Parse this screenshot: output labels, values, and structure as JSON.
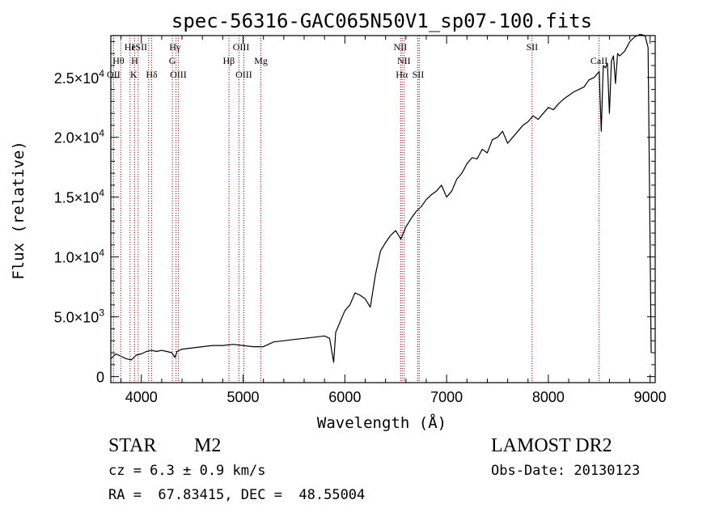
{
  "chart_data": {
    "type": "line",
    "title": "spec-56316-GAC065N50V1_sp07-100.fits",
    "xlabel": "Wavelength (Å)",
    "ylabel": "Flux (relative)",
    "xlim": [
      3700,
      9050
    ],
    "ylim": [
      -500,
      28500
    ],
    "x_ticks": [
      4000,
      5000,
      6000,
      7000,
      8000,
      9000
    ],
    "x_tick_labels": [
      "4000",
      "5000",
      "6000",
      "7000",
      "8000",
      "9000"
    ],
    "y_ticks": [
      0,
      5000,
      10000,
      15000,
      20000,
      25000
    ],
    "y_tick_labels": [
      {
        "mant": "0",
        "exp": ""
      },
      {
        "mant": "5.0×10",
        "exp": "3"
      },
      {
        "mant": "1.0×10",
        "exp": "4"
      },
      {
        "mant": "1.5×10",
        "exp": "4"
      },
      {
        "mant": "2.0×10",
        "exp": "4"
      },
      {
        "mant": "2.5×10",
        "exp": "4"
      }
    ],
    "grid": false,
    "series": [
      {
        "color": "#000000",
        "x": [
          3700,
          3750,
          3800,
          3850,
          3900,
          3950,
          4000,
          4050,
          4100,
          4150,
          4200,
          4250,
          4300,
          4330,
          4350,
          4400,
          4500,
          4600,
          4700,
          4800,
          4900,
          5000,
          5100,
          5200,
          5300,
          5400,
          5500,
          5600,
          5700,
          5800,
          5850,
          5890,
          5910,
          5950,
          6000,
          6050,
          6100,
          6150,
          6200,
          6250,
          6300,
          6350,
          6400,
          6450,
          6500,
          6550,
          6600,
          6650,
          6700,
          6750,
          6800,
          6850,
          6900,
          6950,
          7000,
          7050,
          7100,
          7150,
          7200,
          7250,
          7300,
          7350,
          7400,
          7450,
          7500,
          7550,
          7600,
          7650,
          7700,
          7750,
          7800,
          7850,
          7900,
          7950,
          8000,
          8050,
          8100,
          8150,
          8200,
          8250,
          8300,
          8350,
          8400,
          8450,
          8500,
          8520,
          8540,
          8560,
          8580,
          8600,
          8620,
          8640,
          8660,
          8680,
          8700,
          8750,
          8800,
          8850,
          8900,
          8950,
          8980,
          9000,
          9010
        ],
        "y": [
          1500,
          1900,
          1700,
          1500,
          1400,
          1800,
          1900,
          2100,
          2200,
          2100,
          2200,
          2100,
          2000,
          1600,
          2100,
          2300,
          2400,
          2500,
          2600,
          2600,
          2700,
          2600,
          2500,
          2500,
          2900,
          3000,
          3100,
          3200,
          3300,
          3400,
          3200,
          1200,
          3700,
          4500,
          5500,
          6000,
          7000,
          6800,
          6500,
          5800,
          8500,
          10500,
          11200,
          11800,
          12200,
          11500,
          12500,
          13200,
          13800,
          14200,
          14800,
          15200,
          15500,
          16000,
          15000,
          15500,
          16500,
          17000,
          17800,
          18300,
          18200,
          19000,
          18700,
          19800,
          20000,
          20500,
          19500,
          20000,
          20500,
          21000,
          21300,
          21800,
          21500,
          22000,
          22500,
          22300,
          22800,
          23200,
          23500,
          23800,
          24000,
          24200,
          24800,
          25000,
          25500,
          20500,
          26000,
          25800,
          26200,
          22000,
          26400,
          26800,
          24500,
          27000,
          26800,
          27200,
          28000,
          28400,
          28600,
          28500,
          27500,
          11000,
          2000
        ]
      }
    ],
    "lines": [
      {
        "name": "OII",
        "x": 3727
      },
      {
        "name": "Hθ",
        "x": 3798
      },
      {
        "name": "HeI",
        "x": 3889
      },
      {
        "name": "K",
        "x": 3934
      },
      {
        "name": "H",
        "x": 3969
      },
      {
        "name": "SII",
        "x": 4072
      },
      {
        "name": "Hδ",
        "x": 4102
      },
      {
        "name": "G",
        "x": 4305
      },
      {
        "name": "Hγ",
        "x": 4341
      },
      {
        "name": "OIII",
        "x": 4363
      },
      {
        "name": "Hβ",
        "x": 4861
      },
      {
        "name": "OIII",
        "x": 4959
      },
      {
        "name": "OIII",
        "x": 5007
      },
      {
        "name": "Mg",
        "x": 5175
      },
      {
        "name": "NII",
        "x": 6548
      },
      {
        "name": "Hα",
        "x": 6563
      },
      {
        "name": "NII",
        "x": 6583
      },
      {
        "name": "SII",
        "x": 6717
      },
      {
        "name": "SII",
        "x": 6731
      },
      {
        "name": "SII",
        "x": 7840
      },
      {
        "name": "CaII",
        "x": 8498
      }
    ],
    "line_labels": [
      {
        "text": "He",
        "row": 1,
        "x": 3889
      },
      {
        "text": "I",
        "row": 1,
        "x": 3918
      },
      {
        "text": "SII",
        "row": 1,
        "x": 4000
      },
      {
        "text": "Hγ",
        "row": 1,
        "x": 4330
      },
      {
        "text": "OIII",
        "row": 1,
        "x": 4980
      },
      {
        "text": "NII",
        "row": 1,
        "x": 6545
      },
      {
        "text": "SII",
        "row": 1,
        "x": 7840
      },
      {
        "text": "Hθ",
        "row": 2,
        "x": 3775
      },
      {
        "text": "H",
        "row": 2,
        "x": 3934
      },
      {
        "text": "G",
        "row": 2,
        "x": 4305
      },
      {
        "text": "Hβ",
        "row": 2,
        "x": 4860
      },
      {
        "text": "Mg",
        "row": 2,
        "x": 5175
      },
      {
        "text": "NII",
        "row": 2,
        "x": 6580
      },
      {
        "text": "CaII",
        "row": 2,
        "x": 8498
      },
      {
        "text": "OII",
        "row": 3,
        "x": 3727
      },
      {
        "text": "K",
        "row": 3,
        "x": 3925
      },
      {
        "text": "Hδ",
        "row": 3,
        "x": 4102
      },
      {
        "text": "OIII",
        "row": 3,
        "x": 4363
      },
      {
        "text": "OIII",
        "row": 3,
        "x": 5007
      },
      {
        "text": "Hα",
        "row": 3,
        "x": 6560
      },
      {
        "text": "SII",
        "row": 3,
        "x": 6720
      }
    ],
    "colors": {
      "axes": "#000000",
      "data": "#000000",
      "line_markers": "#8b0000"
    }
  },
  "info": {
    "object_class": "STAR",
    "subclass": "M2",
    "survey": "LAMOST DR2",
    "cz": "cz = 6.3 ± 0.9 km/s",
    "obs_date": "Obs-Date: 20130123",
    "coords": "RA =  67.83415, DEC =  48.55004"
  }
}
